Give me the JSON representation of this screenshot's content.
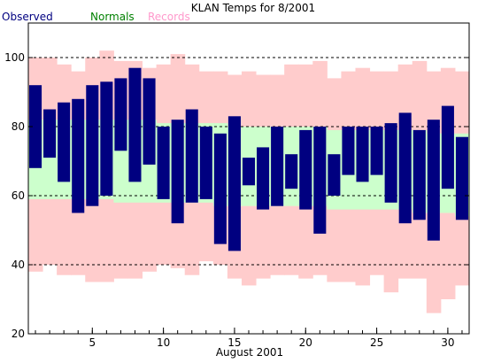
{
  "chart_data": {
    "type": "bar",
    "title": "KLAN Temps for 8/2001",
    "xlabel": "August 2001",
    "ylabel": "",
    "xlim": [
      0.5,
      31.5
    ],
    "ylim": [
      20,
      110
    ],
    "x_ticks": [
      5,
      10,
      15,
      20,
      25,
      30
    ],
    "y_ticks": [
      20,
      40,
      60,
      80,
      100
    ],
    "gridlines_y": [
      40,
      60,
      80,
      100
    ],
    "legend": {
      "placement": "top-left"
    },
    "days": [
      1,
      2,
      3,
      4,
      5,
      6,
      7,
      8,
      9,
      10,
      11,
      12,
      13,
      14,
      15,
      16,
      17,
      18,
      19,
      20,
      21,
      22,
      23,
      24,
      25,
      26,
      27,
      28,
      29,
      30,
      31
    ],
    "series": [
      {
        "name": "Observed",
        "color": "#000080",
        "high": [
          92,
          85,
          87,
          88,
          92,
          93,
          94,
          97,
          94,
          80,
          82,
          85,
          80,
          78,
          83,
          71,
          74,
          80,
          72,
          79,
          80,
          72,
          80,
          80,
          80,
          81,
          84,
          79,
          82,
          86,
          77
        ],
        "low": [
          68,
          71,
          64,
          55,
          57,
          60,
          73,
          64,
          69,
          59,
          52,
          58,
          59,
          46,
          44,
          63,
          56,
          57,
          62,
          56,
          49,
          60,
          66,
          64,
          66,
          58,
          52,
          53,
          47,
          62,
          53
        ]
      },
      {
        "name": "Normals",
        "color": "#008000",
        "fill": "#ccffcc",
        "high": [
          82,
          82,
          82,
          82,
          82,
          82,
          82,
          82,
          82,
          81,
          81,
          81,
          81,
          81,
          80,
          80,
          80,
          80,
          80,
          80,
          80,
          79,
          79,
          79,
          79,
          79,
          79,
          79,
          78,
          78,
          78
        ],
        "low": [
          59,
          59,
          59,
          59,
          59,
          59,
          58,
          58,
          58,
          58,
          58,
          58,
          58,
          57,
          57,
          57,
          57,
          57,
          57,
          57,
          57,
          56,
          56,
          56,
          56,
          56,
          56,
          55,
          55,
          55,
          54
        ]
      },
      {
        "name": "Records",
        "color": "#ff99cc",
        "fill": "#ffcccc",
        "high": [
          100,
          100,
          98,
          96,
          100,
          102,
          99,
          99,
          97,
          98,
          101,
          98,
          96,
          96,
          95,
          96,
          95,
          95,
          98,
          98,
          99,
          94,
          96,
          97,
          96,
          96,
          98,
          99,
          96,
          97,
          96
        ],
        "low": [
          38,
          40,
          37,
          37,
          35,
          35,
          36,
          36,
          38,
          40,
          39,
          37,
          41,
          40,
          36,
          34,
          36,
          37,
          37,
          36,
          37,
          35,
          35,
          34,
          37,
          32,
          36,
          36,
          26,
          30,
          34
        ]
      }
    ]
  }
}
